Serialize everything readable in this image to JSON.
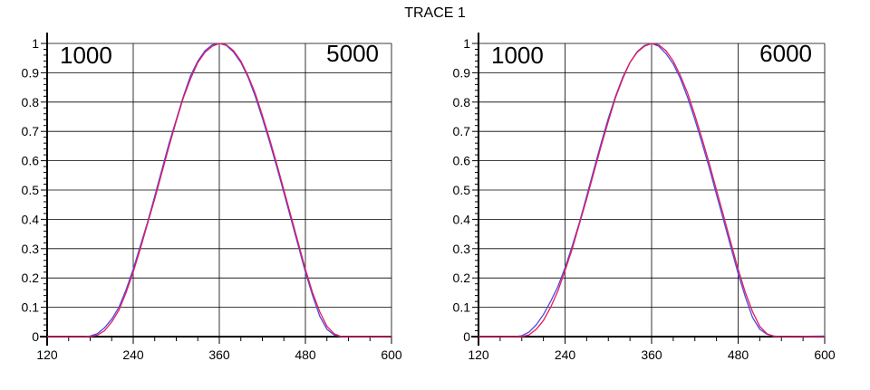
{
  "page": {
    "title": "TRACE 1"
  },
  "chart_data": [
    {
      "type": "line",
      "panel_labels": {
        "left": "1000",
        "right": "5000"
      },
      "xlim": [
        120,
        600
      ],
      "ylim": [
        0,
        1
      ],
      "xticks": [
        120,
        240,
        360,
        480,
        600
      ],
      "yticks": [
        0,
        0.1,
        0.2,
        0.3,
        0.4,
        0.5,
        0.6,
        0.7,
        0.8,
        0.9,
        1
      ],
      "xtick_labels": [
        "120",
        "240",
        "360",
        "480",
        "600"
      ],
      "ytick_labels": [
        "0",
        "0.1",
        "0.2",
        "0.3",
        "0.4",
        "0.5",
        "0.6",
        "0.7",
        "0.8",
        "0.9",
        "1"
      ],
      "grid": true,
      "series": [
        {
          "color": "#4a4adf",
          "x": [
            120,
            170,
            180,
            190,
            200,
            210,
            220,
            230,
            240,
            250,
            260,
            270,
            280,
            290,
            300,
            310,
            320,
            330,
            340,
            350,
            360,
            370,
            380,
            390,
            400,
            410,
            420,
            430,
            440,
            450,
            460,
            470,
            480,
            490,
            500,
            510,
            520,
            530,
            540,
            600
          ],
          "y": [
            0,
            0,
            0.002,
            0.01,
            0.03,
            0.06,
            0.1,
            0.16,
            0.23,
            0.31,
            0.39,
            0.48,
            0.57,
            0.66,
            0.74,
            0.82,
            0.89,
            0.94,
            0.975,
            0.995,
            1,
            0.993,
            0.97,
            0.935,
            0.885,
            0.82,
            0.745,
            0.665,
            0.58,
            0.49,
            0.4,
            0.31,
            0.22,
            0.14,
            0.07,
            0.025,
            0.006,
            0,
            0,
            0
          ]
        },
        {
          "color": "#e8195a",
          "x": [
            120,
            180,
            190,
            200,
            210,
            220,
            230,
            240,
            250,
            260,
            270,
            280,
            290,
            300,
            310,
            320,
            330,
            340,
            350,
            360,
            370,
            380,
            390,
            400,
            410,
            420,
            430,
            440,
            450,
            460,
            470,
            480,
            490,
            500,
            510,
            520,
            530,
            540,
            600
          ],
          "y": [
            0,
            0,
            0.005,
            0.02,
            0.05,
            0.09,
            0.15,
            0.22,
            0.3,
            0.385,
            0.47,
            0.56,
            0.65,
            0.735,
            0.815,
            0.88,
            0.935,
            0.97,
            0.99,
            1,
            0.995,
            0.975,
            0.94,
            0.89,
            0.83,
            0.755,
            0.675,
            0.59,
            0.5,
            0.41,
            0.32,
            0.23,
            0.15,
            0.085,
            0.035,
            0.01,
            0,
            0,
            0
          ]
        }
      ]
    },
    {
      "type": "line",
      "panel_labels": {
        "left": "1000",
        "right": "6000"
      },
      "xlim": [
        120,
        600
      ],
      "ylim": [
        0,
        1
      ],
      "xticks": [
        120,
        240,
        360,
        480,
        600
      ],
      "yticks": [
        0,
        0.1,
        0.2,
        0.3,
        0.4,
        0.5,
        0.6,
        0.7,
        0.8,
        0.9,
        1
      ],
      "xtick_labels": [
        "120",
        "240",
        "360",
        "480",
        "600"
      ],
      "ytick_labels": [
        "0",
        "0.1",
        "0.2",
        "0.3",
        "0.4",
        "0.5",
        "0.6",
        "0.7",
        "0.8",
        "0.9",
        "1"
      ],
      "grid": true,
      "series": [
        {
          "color": "#4a4adf",
          "x": [
            120,
            170,
            180,
            190,
            200,
            210,
            220,
            230,
            240,
            250,
            260,
            270,
            280,
            290,
            300,
            310,
            320,
            330,
            340,
            350,
            360,
            370,
            380,
            390,
            400,
            410,
            420,
            430,
            440,
            450,
            460,
            470,
            480,
            490,
            500,
            510,
            520,
            530,
            540,
            600
          ],
          "y": [
            0,
            0,
            0.003,
            0.015,
            0.04,
            0.075,
            0.12,
            0.17,
            0.235,
            0.31,
            0.39,
            0.48,
            0.57,
            0.66,
            0.745,
            0.82,
            0.885,
            0.935,
            0.972,
            0.993,
            1,
            0.99,
            0.965,
            0.93,
            0.88,
            0.815,
            0.74,
            0.66,
            0.575,
            0.485,
            0.395,
            0.305,
            0.215,
            0.135,
            0.065,
            0.025,
            0.008,
            0.002,
            0,
            0.002
          ]
        },
        {
          "color": "#e8195a",
          "x": [
            120,
            180,
            190,
            200,
            210,
            220,
            230,
            240,
            250,
            260,
            270,
            280,
            290,
            300,
            310,
            320,
            330,
            340,
            350,
            360,
            370,
            380,
            390,
            400,
            410,
            420,
            430,
            440,
            450,
            460,
            470,
            480,
            490,
            500,
            510,
            520,
            530,
            540,
            600
          ],
          "y": [
            0,
            0,
            0.006,
            0.025,
            0.055,
            0.1,
            0.155,
            0.225,
            0.3,
            0.385,
            0.47,
            0.56,
            0.65,
            0.735,
            0.815,
            0.88,
            0.935,
            0.97,
            0.99,
            1,
            0.995,
            0.975,
            0.94,
            0.89,
            0.83,
            0.755,
            0.675,
            0.59,
            0.5,
            0.41,
            0.32,
            0.23,
            0.15,
            0.085,
            0.035,
            0.01,
            0,
            0,
            0
          ]
        }
      ]
    }
  ]
}
